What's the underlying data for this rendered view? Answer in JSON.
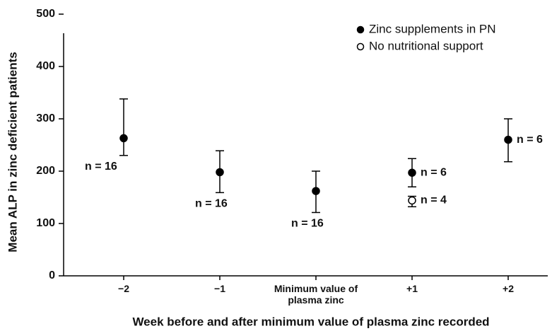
{
  "chart_data": {
    "type": "errorbar",
    "ylabel": "Mean ALP in zinc deficient patients",
    "xlabel": "Week before and after minimum value of plasma zinc recorded",
    "categories": [
      "−2",
      "−1",
      "Minimum value of plasma zinc",
      "+1",
      "+2"
    ],
    "ylim": [
      0,
      500
    ],
    "yticks": [
      0,
      100,
      200,
      300,
      400,
      500
    ],
    "legend": "upper right",
    "series": [
      {
        "name": "Zinc supplements in PN",
        "marker": "filled",
        "color": "#000000",
        "values": [
          263,
          198,
          162,
          197,
          260
        ],
        "high": [
          338,
          239,
          200,
          224,
          300
        ],
        "low": [
          230,
          159,
          121,
          170,
          218
        ],
        "labels": [
          "n = 16",
          "n = 16",
          "n = 16",
          "n = 6",
          "n = 6"
        ]
      },
      {
        "name": "No nutritional support",
        "marker": "open",
        "color": "#000000",
        "values": [
          null,
          null,
          null,
          144,
          null
        ],
        "high": [
          null,
          null,
          null,
          152,
          null
        ],
        "low": [
          null,
          null,
          null,
          132,
          null
        ],
        "labels": [
          null,
          null,
          null,
          "n = 4",
          null
        ]
      }
    ]
  }
}
